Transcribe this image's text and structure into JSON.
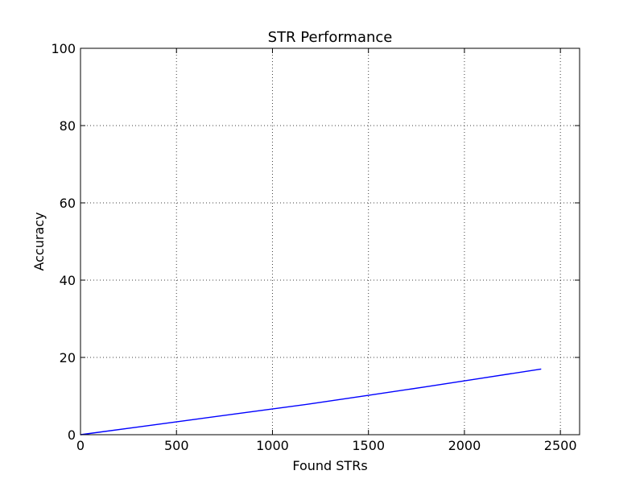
{
  "chart_data": {
    "type": "line",
    "title": "STR Performance",
    "xlabel": "Found STRs",
    "ylabel": "Accuracy",
    "xlim": [
      0,
      2600
    ],
    "ylim": [
      0,
      100
    ],
    "grid": true,
    "x_ticks": [
      0,
      500,
      1000,
      1500,
      2000,
      2500
    ],
    "y_ticks": [
      0,
      20,
      40,
      60,
      80,
      100
    ],
    "x_tick_labels": [
      "0",
      "500",
      "1000",
      "1500",
      "2000",
      "2500"
    ],
    "y_tick_labels": [
      "0",
      "20",
      "40",
      "60",
      "80",
      "100"
    ],
    "series": [
      {
        "color": "#0000ff",
        "x": [
          0,
          300,
          600,
          900,
          1200,
          1500,
          1800,
          2100,
          2400
        ],
        "y": [
          0,
          2.0,
          4.0,
          6.0,
          8.0,
          10.2,
          12.4,
          14.7,
          17.0
        ]
      }
    ]
  }
}
